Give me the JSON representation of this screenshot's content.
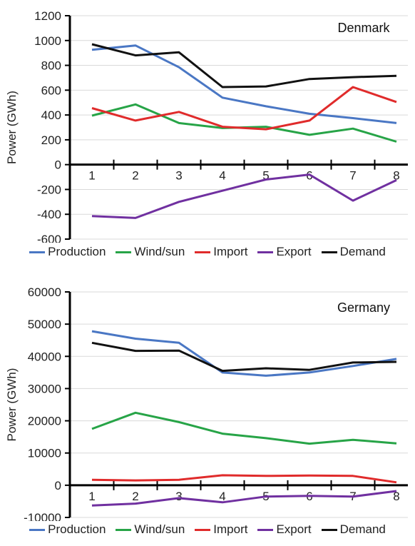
{
  "chart_data": [
    {
      "type": "line",
      "title": "Denmark",
      "xlabel": "",
      "ylabel": "Power (GWh)",
      "categories": [
        "1",
        "2",
        "3",
        "4",
        "5",
        "6",
        "7",
        "8"
      ],
      "ylim": [
        -600,
        1200
      ],
      "yticks": [
        -600,
        -400,
        -200,
        0,
        200,
        400,
        600,
        800,
        1000,
        1200
      ],
      "grid": true,
      "legend": "bottom",
      "series": [
        {
          "name": "Production",
          "color": "#4a77c4",
          "values": [
            925,
            960,
            785,
            540,
            470,
            410,
            375,
            335
          ]
        },
        {
          "name": "Wind/sun",
          "color": "#27a447",
          "values": [
            395,
            485,
            335,
            295,
            305,
            240,
            290,
            185
          ]
        },
        {
          "name": "Import",
          "color": "#e02b2b",
          "values": [
            455,
            355,
            425,
            305,
            285,
            355,
            625,
            505
          ]
        },
        {
          "name": "Export",
          "color": "#7030a0",
          "values": [
            -415,
            -430,
            -300,
            -210,
            -120,
            -80,
            -290,
            -125
          ]
        },
        {
          "name": "Demand",
          "color": "#111111",
          "values": [
            970,
            880,
            905,
            625,
            630,
            690,
            705,
            715
          ]
        }
      ]
    },
    {
      "type": "line",
      "title": "Germany",
      "xlabel": "",
      "ylabel": "Power (GWh)",
      "categories": [
        "1",
        "2",
        "3",
        "4",
        "5",
        "6",
        "7",
        "8"
      ],
      "ylim": [
        -10000,
        60000
      ],
      "yticks": [
        -10000,
        0,
        10000,
        20000,
        30000,
        40000,
        50000,
        60000
      ],
      "grid": true,
      "legend": "bottom",
      "series": [
        {
          "name": "Production",
          "color": "#4a77c4",
          "values": [
            47800,
            45500,
            44200,
            35000,
            34000,
            35000,
            37000,
            39200
          ]
        },
        {
          "name": "Wind/sun",
          "color": "#27a447",
          "values": [
            17500,
            22500,
            19600,
            16000,
            14600,
            12900,
            14100,
            13000
          ]
        },
        {
          "name": "Import",
          "color": "#e02b2b",
          "values": [
            1700,
            1500,
            1700,
            3100,
            2900,
            3000,
            2900,
            900
          ]
        },
        {
          "name": "Export",
          "color": "#7030a0",
          "values": [
            -6300,
            -5700,
            -4000,
            -5300,
            -3500,
            -3300,
            -3500,
            -1800
          ]
        },
        {
          "name": "Demand",
          "color": "#111111",
          "values": [
            44200,
            41700,
            41800,
            35500,
            36300,
            35800,
            38100,
            38300
          ]
        }
      ]
    }
  ]
}
